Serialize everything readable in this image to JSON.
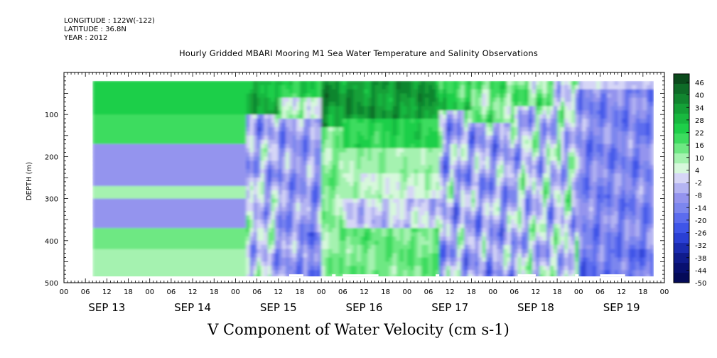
{
  "header": {
    "longitude": "LONGITUDE : 122W(-122)",
    "latitude": "LATITUDE : 36.8N",
    "year": "YEAR : 2012"
  },
  "chart_data": {
    "type": "heatmap",
    "title": "Hourly Gridded MBARI Mooring M1 Sea Water Temperature and Salinity Observations",
    "subtitle": "V Component of Water Velocity (cm s-1)",
    "ylabel": "DEPTH (m)",
    "xlabel": "",
    "y_range": [
      500,
      0
    ],
    "y_ticks": [
      "100",
      "200",
      "300",
      "400",
      "500"
    ],
    "x_hour_ticks": [
      "00",
      "06",
      "12",
      "18",
      "00",
      "06",
      "12",
      "18",
      "00",
      "06",
      "12",
      "18",
      "00",
      "06",
      "12",
      "18",
      "00",
      "06",
      "12",
      "18",
      "00",
      "06",
      "12",
      "18",
      "00",
      "06",
      "12",
      "18",
      "00"
    ],
    "x_dates": [
      "SEP 13",
      "SEP 14",
      "SEP 15",
      "SEP 16",
      "SEP 17",
      "SEP 18",
      "SEP 19"
    ],
    "data_extent": {
      "x_hours_start": 8,
      "x_hours_end": 165,
      "depth_top": 20,
      "depth_bottom": 485
    },
    "colorbar": {
      "labels": [
        "46",
        "40",
        "34",
        "28",
        "22",
        "16",
        "10",
        "4",
        "-2",
        "-8",
        "-14",
        "-20",
        "-26",
        "-32",
        "-38",
        "-44",
        "-50"
      ],
      "colors": [
        "#0b4a1c",
        "#0e6b27",
        "#11852f",
        "#14a037",
        "#18b83f",
        "#1ecf49",
        "#3ddc5f",
        "#6ee883",
        "#a5f2b0",
        "#d7f8dc",
        "#d6d6f6",
        "#b4b4f2",
        "#9494ee",
        "#7c86ee",
        "#5c6cee",
        "#3f55e8",
        "#2a3fd4",
        "#1a2bb0",
        "#0f1b8c",
        "#081070",
        "#040a58"
      ]
    },
    "grid": false,
    "description": "Depth-time contour of north-south velocity; green = northward (positive), blue = southward (negative). Banded structure Sep 13-14, variable flow Sep 15-19."
  }
}
